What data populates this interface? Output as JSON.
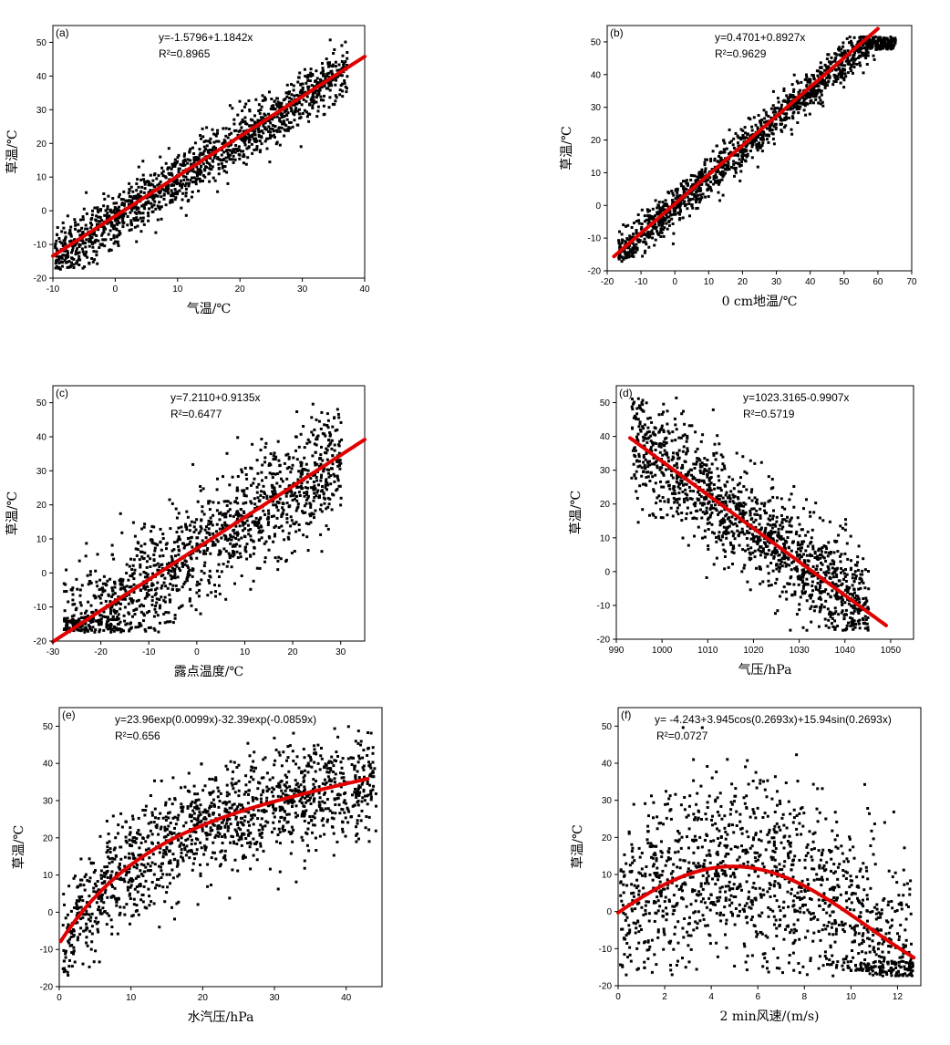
{
  "chart_data": [
    {
      "type": "scatter",
      "panel_label": "(a)",
      "xlabel": "气温/℃",
      "ylabel": "草温/℃",
      "xlim": [
        -10,
        40
      ],
      "ylim": [
        -20,
        55
      ],
      "xticks": [
        -10,
        0,
        10,
        20,
        30,
        40
      ],
      "yticks": [
        -20,
        -10,
        0,
        10,
        20,
        30,
        40,
        50
      ],
      "equation": "y=-1.5796+1.1842x",
      "r2_label": "R²=0.8965",
      "fit": {
        "type": "linear",
        "intercept": -1.5796,
        "slope": 1.1842,
        "x_range": [
          -10,
          40
        ]
      },
      "scatter_cloud": {
        "x_range": [
          -10,
          37
        ],
        "noise_sd": 4
      }
    },
    {
      "type": "scatter",
      "panel_label": "(b)",
      "xlabel": "0 cm地温/℃",
      "ylabel": "草温/℃",
      "xlim": [
        -20,
        70
      ],
      "ylim": [
        -20,
        55
      ],
      "xticks": [
        -20,
        -10,
        0,
        10,
        20,
        30,
        40,
        50,
        60,
        70
      ],
      "yticks": [
        -20,
        -10,
        0,
        10,
        20,
        30,
        40,
        50
      ],
      "equation": "y=0.4701+0.8927x",
      "r2_label": "R²=0.9629",
      "fit": {
        "type": "linear",
        "intercept": 0.4701,
        "slope": 0.8927,
        "x_range": [
          -18,
          60
        ]
      },
      "scatter_cloud": {
        "x_range": [
          -17,
          65
        ],
        "noise_sd": 3
      }
    },
    {
      "type": "scatter",
      "panel_label": "(c)",
      "xlabel": "露点温度/℃",
      "ylabel": "草温/℃",
      "xlim": [
        -30,
        35
      ],
      "ylim": [
        -20,
        55
      ],
      "xticks": [
        -30,
        -20,
        -10,
        0,
        10,
        20,
        30
      ],
      "yticks": [
        -20,
        -10,
        0,
        10,
        20,
        30,
        40,
        50
      ],
      "equation": "y=7.2110+0.9135x",
      "r2_label": "R²=0.6477",
      "fit": {
        "type": "linear",
        "intercept": 7.211,
        "slope": 0.9135,
        "x_range": [
          -30,
          35
        ]
      },
      "scatter_cloud": {
        "x_range": [
          -28,
          30
        ],
        "noise_sd": 8
      }
    },
    {
      "type": "scatter",
      "panel_label": "(d)",
      "xlabel": "气压/hPa",
      "ylabel": "草温/℃",
      "xlim": [
        990,
        1055
      ],
      "ylim": [
        -20,
        55
      ],
      "xticks": [
        990,
        1000,
        1010,
        1020,
        1030,
        1040,
        1050
      ],
      "yticks": [
        -20,
        -10,
        0,
        10,
        20,
        30,
        40,
        50
      ],
      "equation": "y=1023.3165-0.9907x",
      "r2_label": "R²=0.5719",
      "fit": {
        "type": "linear",
        "intercept": 1023.3165,
        "slope": -0.9907,
        "x_range": [
          993,
          1049
        ]
      },
      "scatter_cloud": {
        "x_range": [
          993,
          1045
        ],
        "noise_sd": 8
      }
    },
    {
      "type": "scatter",
      "panel_label": "(e)",
      "xlabel": "水汽压/hPa",
      "ylabel": "草温/℃",
      "xlim": [
        0,
        45
      ],
      "ylim": [
        -20,
        55
      ],
      "xticks": [
        0,
        10,
        20,
        30,
        40
      ],
      "yticks": [
        -20,
        -10,
        0,
        10,
        20,
        30,
        40,
        50
      ],
      "equation": "y=23.96exp(0.0099x)-32.39exp(-0.0859x)",
      "r2_label": "R²=0.656",
      "fit": {
        "type": "exp2",
        "a": 23.96,
        "b": 0.0099,
        "c": -32.39,
        "d": -0.0859,
        "x_range": [
          0.2,
          43
        ]
      },
      "scatter_cloud": {
        "x_range": [
          0.3,
          44
        ],
        "noise_sd": 7
      }
    },
    {
      "type": "scatter",
      "panel_label": "(f)",
      "xlabel": "2 min风速/(m/s)",
      "ylabel": "草温/℃",
      "xlim": [
        0,
        13
      ],
      "ylim": [
        -20,
        55
      ],
      "xticks": [
        0,
        2,
        4,
        6,
        8,
        10,
        12
      ],
      "yticks": [
        -20,
        -10,
        0,
        10,
        20,
        30,
        40,
        50
      ],
      "equation": "y= -4.243+3.945cos(0.2693x)+15.94sin(0.2693x)",
      "r2_label": "R²=0.0727",
      "fit": {
        "type": "fourier1",
        "a0": -4.243,
        "a1": 3.945,
        "b1": 15.94,
        "w": 0.2693,
        "x_range": [
          0,
          12.7
        ]
      },
      "scatter_cloud": {
        "x_range": [
          0,
          12.6
        ],
        "noise_sd": 12
      }
    }
  ]
}
